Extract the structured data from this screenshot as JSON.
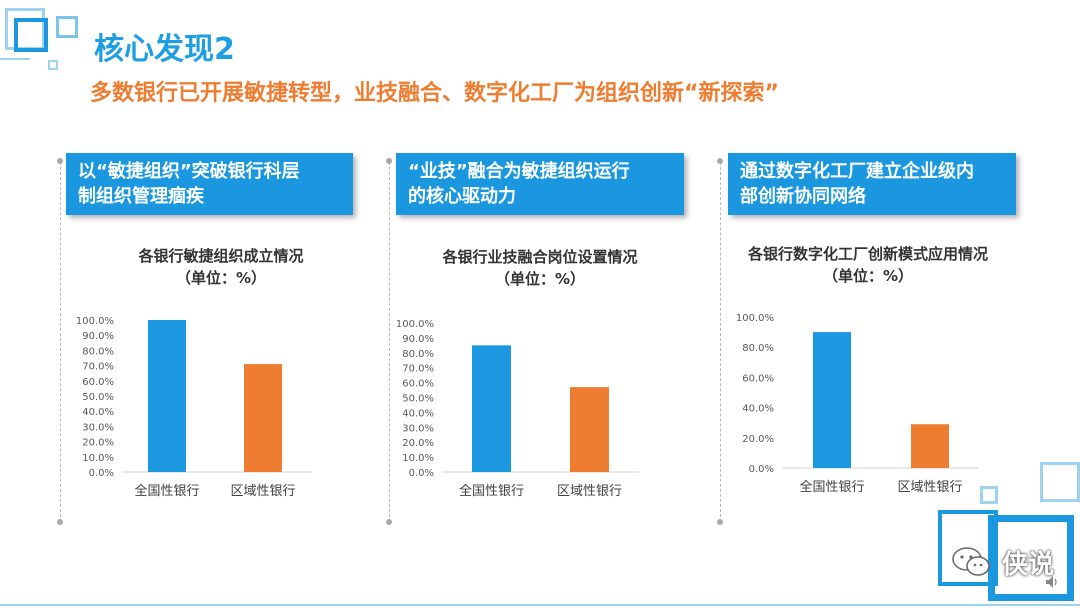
{
  "header": {
    "title": "核心发现2",
    "subtitle": "多数银行已开展敏捷转型，业技融合、数字化工厂为组织创新“新探索”"
  },
  "panels": [
    {
      "heading_line1": "以“敏捷组织”突破银行科层",
      "heading_line2": "制组织管理痼疾",
      "chart_title": "各银行敏捷组织成立情况",
      "chart_unit": "（单位：%）"
    },
    {
      "heading_line1": "“业技”融合为敏捷组织运行",
      "heading_line2": "的核心驱动力",
      "chart_title": "各银行业技融合岗位设置情况",
      "chart_unit": "（单位：%）"
    },
    {
      "heading_line1": "通过数字化工厂建立企业级内",
      "heading_line2": "部创新协同网络",
      "chart_title": "各银行数字化工厂创新模式应用情况",
      "chart_unit": "（单位：%）"
    }
  ],
  "colors": {
    "accent_blue": "#1a97de",
    "title_blue": "#1f9fe3",
    "subtitle_orange": "#ef7d31",
    "bar_blue": "#1b98df",
    "bar_orange": "#ef7d31"
  },
  "watermark": {
    "text": "侠说",
    "icon": "wechat-icon"
  },
  "chart_data": [
    {
      "type": "bar",
      "title": "各银行敏捷组织成立情况",
      "subtitle": "（单位：%）",
      "categories": [
        "全国性银行",
        "区域性银行"
      ],
      "values": [
        100.0,
        71.0
      ],
      "bar_colors": [
        "#1b98df",
        "#ef7d31"
      ],
      "ylim": [
        0,
        100
      ],
      "yticks": [
        "0.0%",
        "10.0%",
        "20.0%",
        "30.0%",
        "40.0%",
        "50.0%",
        "60.0%",
        "70.0%",
        "80.0%",
        "90.0%",
        "100.0%"
      ],
      "grid": false
    },
    {
      "type": "bar",
      "title": "各银行业技融合岗位设置情况",
      "subtitle": "（单位：%）",
      "categories": [
        "全国性银行",
        "区域性银行"
      ],
      "values": [
        85.0,
        57.0
      ],
      "bar_colors": [
        "#1b98df",
        "#ef7d31"
      ],
      "ylim": [
        0,
        100
      ],
      "yticks": [
        "0.0%",
        "10.0%",
        "20.0%",
        "30.0%",
        "40.0%",
        "50.0%",
        "60.0%",
        "70.0%",
        "80.0%",
        "90.0%",
        "100.0%"
      ],
      "grid": false
    },
    {
      "type": "bar",
      "title": "各银行数字化工厂创新模式应用情况",
      "subtitle": "（单位：%）",
      "categories": [
        "全国性银行",
        "区域性银行"
      ],
      "values": [
        90.0,
        29.0
      ],
      "bar_colors": [
        "#1b98df",
        "#ef7d31"
      ],
      "ylim": [
        0,
        100
      ],
      "yticks": [
        "0.0%",
        "20.0%",
        "40.0%",
        "60.0%",
        "80.0%",
        "100.0%"
      ],
      "grid": false
    }
  ]
}
